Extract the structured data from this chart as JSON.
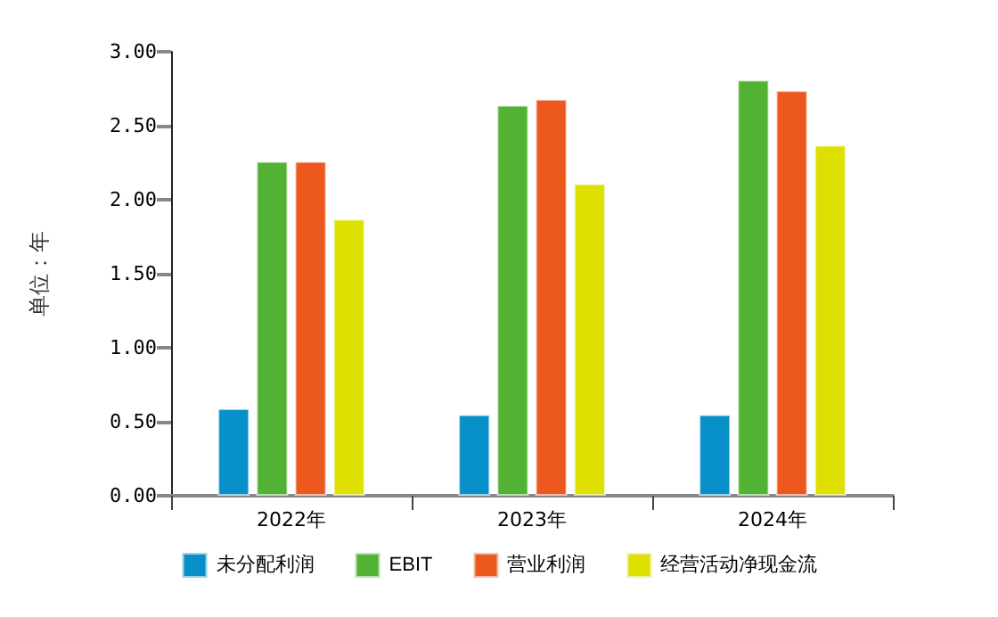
{
  "chart_data": {
    "type": "bar",
    "ylabel": "单位：年",
    "categories": [
      "2022年",
      "2023年",
      "2024年"
    ],
    "series": [
      {
        "name": "未分配利润",
        "color": "#078fc9",
        "values": [
          0.59,
          0.55,
          0.55
        ]
      },
      {
        "name": "EBIT",
        "color": "#52b233",
        "values": [
          2.26,
          2.64,
          2.81
        ]
      },
      {
        "name": "营业利润",
        "color": "#ec581e",
        "values": [
          2.26,
          2.68,
          2.74
        ]
      },
      {
        "name": "经营活动净现金流",
        "color": "#dde000",
        "values": [
          1.87,
          2.11,
          2.37
        ]
      }
    ],
    "ylim": [
      0,
      3
    ],
    "yticks": [
      {
        "value": 0,
        "label": "0.00"
      },
      {
        "value": 0.5,
        "label": "0.50"
      },
      {
        "value": 1,
        "label": "1.00"
      },
      {
        "value": 1.5,
        "label": "1.50"
      },
      {
        "value": 2,
        "label": "2.00"
      },
      {
        "value": 2.5,
        "label": "2.50"
      },
      {
        "value": 3,
        "label": "3.00"
      }
    ],
    "grid": false,
    "legend": "bottom"
  }
}
